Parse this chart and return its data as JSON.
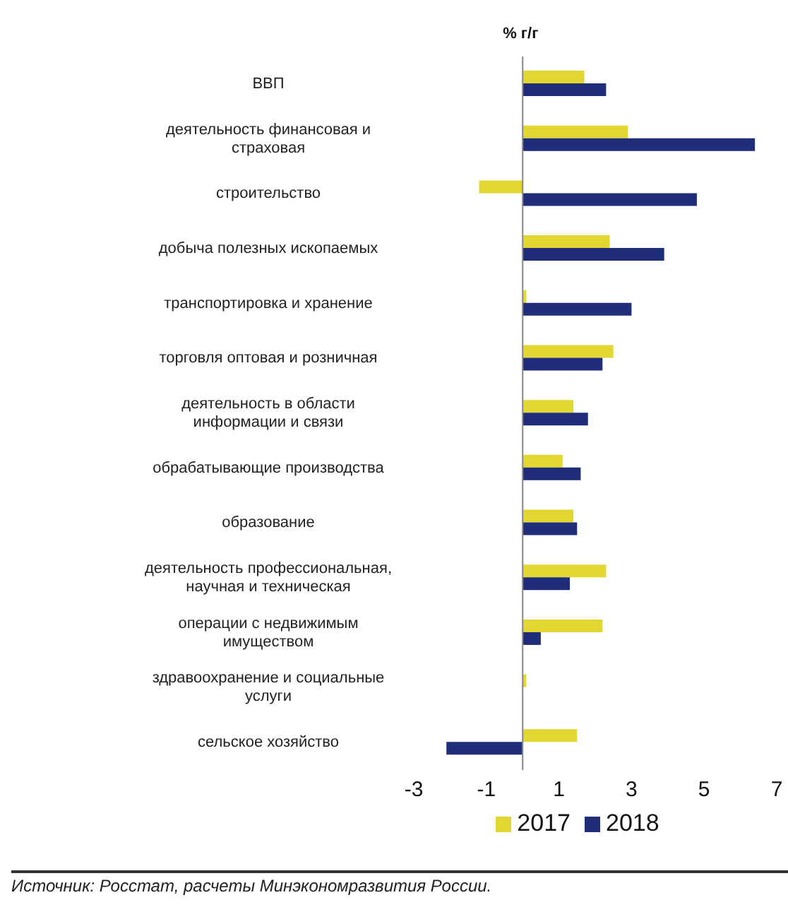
{
  "chart_data": {
    "type": "bar",
    "orientation": "horizontal",
    "title": "% г/г",
    "categories": [
      "ВВП",
      "деятельность финансовая и страховая",
      "строительство",
      "добыча полезных ископаемых",
      "транспортировка и хранение",
      "торговля оптовая и розничная",
      "деятельность в области информации и связи",
      "обрабатывающие производства",
      "образование",
      "деятельность профессиональная, научная и техническая",
      "операции с недвижимым имуществом",
      "здравоохранение и социальные услуги",
      "сельское хозяйство"
    ],
    "series": [
      {
        "name": "2017",
        "color": "#e3d631",
        "values": [
          1.7,
          2.9,
          -1.2,
          2.4,
          0.1,
          2.5,
          1.4,
          1.1,
          1.4,
          2.3,
          2.2,
          0.1,
          1.5
        ]
      },
      {
        "name": "2018",
        "color": "#1f2d7b",
        "values": [
          2.3,
          6.4,
          4.8,
          3.9,
          3.0,
          2.2,
          1.8,
          1.6,
          1.5,
          1.3,
          0.5,
          0,
          -2.1
        ]
      }
    ],
    "xlim": [
      -3,
      7
    ],
    "xticks": [
      -3,
      -1,
      1,
      3,
      5,
      7
    ],
    "grid": false,
    "legend": "bottom",
    "annotations": [
      "Источник: Росстат, расчеты Минэкономразвития России."
    ]
  }
}
